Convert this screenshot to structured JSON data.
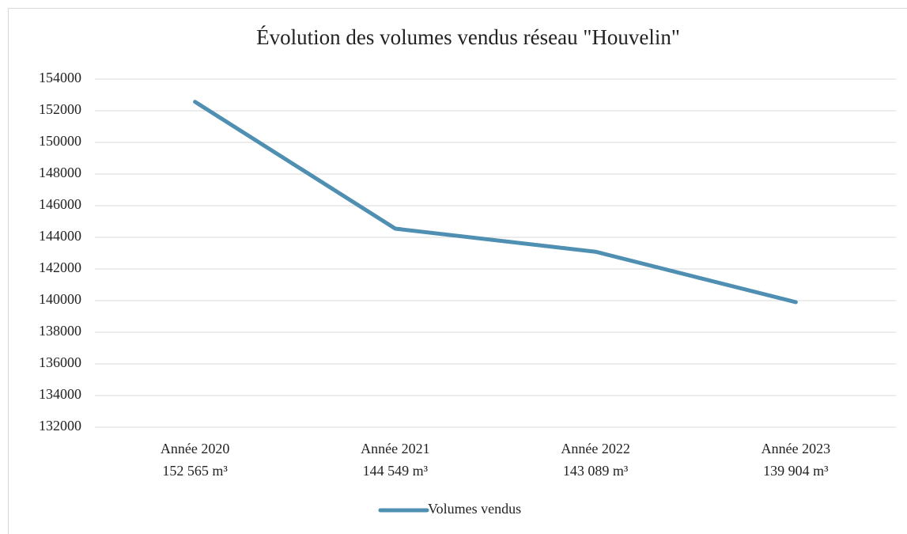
{
  "chart_data": {
    "type": "line",
    "title": "Évolution des volumes vendus réseau \"Houvelin\"",
    "categories": [
      "Année 2020",
      "Année 2021",
      "Année 2022",
      "Année 2023"
    ],
    "series": [
      {
        "name": "Volumes vendus",
        "color": "#4e8fb2",
        "values": [
          152565,
          144549,
          143089,
          139904
        ],
        "value_labels": [
          "152 565 m³",
          "144 549 m³",
          "143 089 m³",
          "139 904 m³"
        ]
      }
    ],
    "ylim": [
      132000,
      154000
    ],
    "yticks": [
      132000,
      134000,
      136000,
      138000,
      140000,
      142000,
      144000,
      146000,
      148000,
      150000,
      152000,
      154000
    ],
    "grid": true,
    "legend": "bottom"
  }
}
